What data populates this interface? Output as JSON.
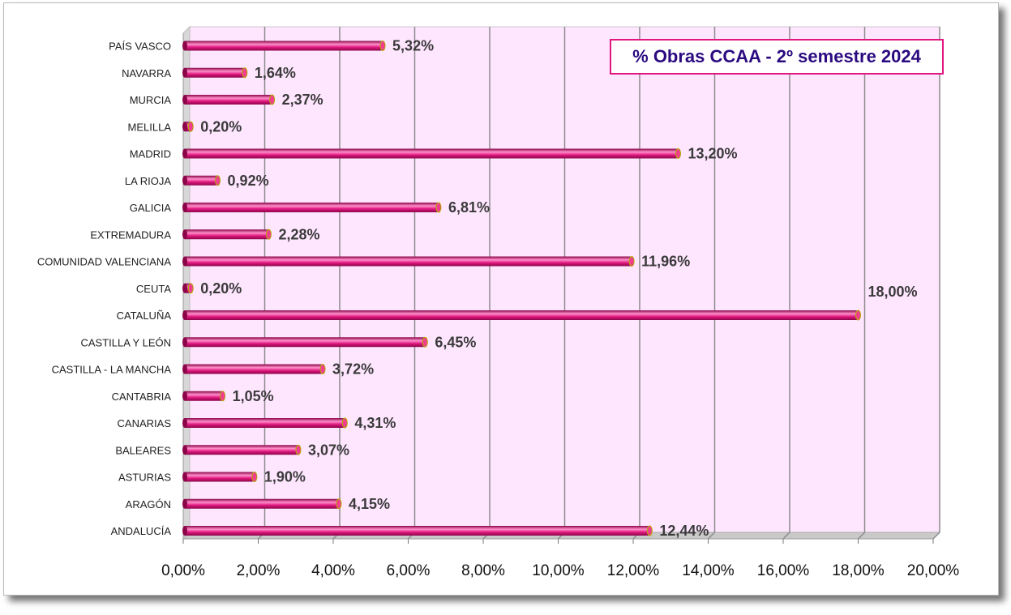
{
  "chart_data": {
    "type": "bar",
    "orientation": "horizontal",
    "title": "% Obras CCAA - 2º semestre 2024",
    "categories": [
      "PAÍS VASCO",
      "NAVARRA",
      "MURCIA",
      "MELILLA",
      "MADRID",
      "LA RIOJA",
      "GALICIA",
      "EXTREMADURA",
      "COMUNIDAD VALENCIANA",
      "CEUTA",
      "CATALUÑA",
      "CASTILLA Y LEÓN",
      "CASTILLA - LA MANCHA",
      "CANTABRIA",
      "CANARIAS",
      "BALEARES",
      "ASTURIAS",
      "ARAGÓN",
      "ANDALUCÍA"
    ],
    "values": [
      5.32,
      1.64,
      2.37,
      0.2,
      13.2,
      0.92,
      6.81,
      2.28,
      11.96,
      0.2,
      18.0,
      6.45,
      3.72,
      1.05,
      4.31,
      3.07,
      1.9,
      4.15,
      12.44
    ],
    "value_labels": [
      "5,32%",
      "1,64%",
      "2,37%",
      "0,20%",
      "13,20%",
      "0,92%",
      "6,81%",
      "2,28%",
      "11,96%",
      "0,20%",
      "18,00%",
      "6,45%",
      "3,72%",
      "1,05%",
      "4,31%",
      "3,07%",
      "1,90%",
      "4,15%",
      "12,44%"
    ],
    "xlim": [
      0,
      20
    ],
    "x_ticks": [
      0,
      2,
      4,
      6,
      8,
      10,
      12,
      14,
      16,
      18,
      20
    ],
    "x_tick_labels": [
      "0,00%",
      "2,00%",
      "4,00%",
      "6,00%",
      "8,00%",
      "10,00%",
      "12,00%",
      "14,00%",
      "16,00%",
      "18,00%",
      "20,00%"
    ],
    "xlabel": "",
    "ylabel": "",
    "grid": true,
    "colors": {
      "bar": "#e0177f",
      "bar_light": "#ff8fcb",
      "bar_dark": "#8a0648",
      "plot_bg": "#ffe6ff",
      "grid": "#8c8c8c",
      "title_text": "#2b0a80",
      "title_border": "#e0177f"
    }
  }
}
